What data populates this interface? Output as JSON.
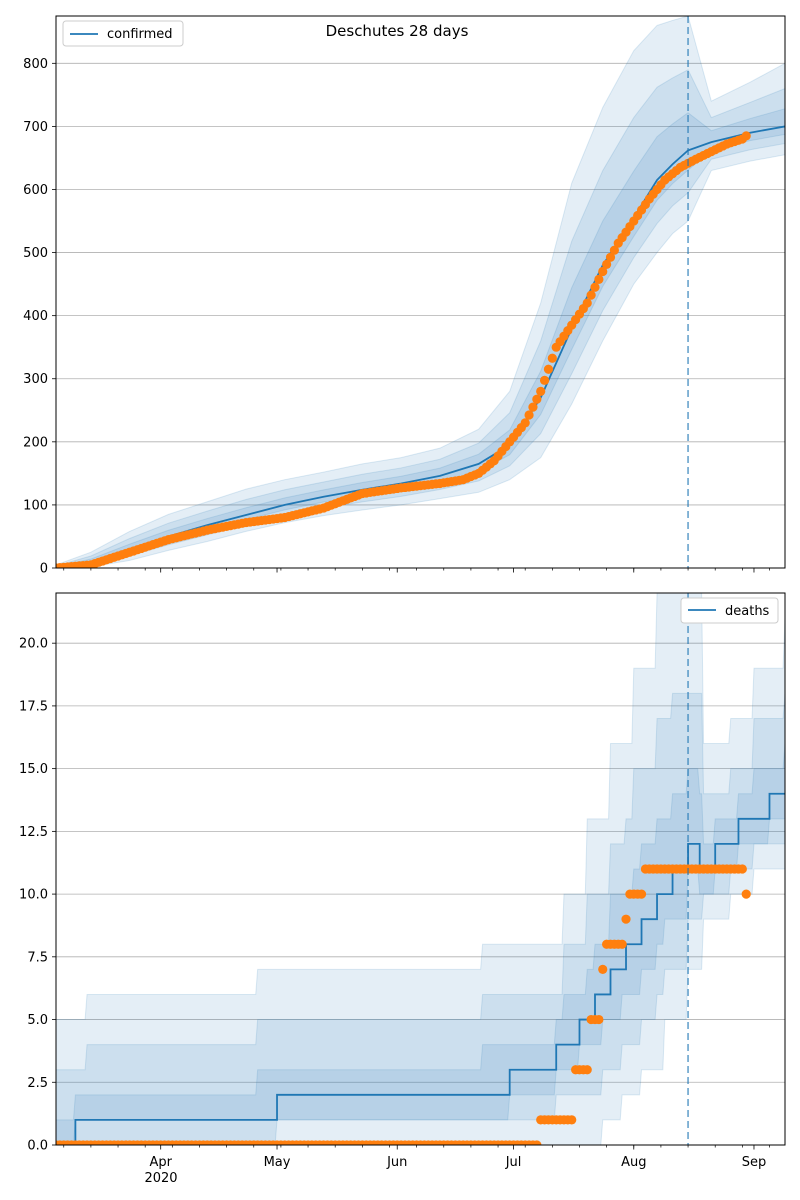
{
  "figure": {
    "title": "Deschutes 28 days"
  },
  "colors": {
    "model": "#1f77b4",
    "observed": "#ff7f0e",
    "band": "#1f77b4",
    "grid": "#b0b0b0",
    "axis": "#000000"
  },
  "x_axis": {
    "month_ticks": [
      {
        "label": "Apr",
        "day": 18
      },
      {
        "label": "May",
        "day": 48
      },
      {
        "label": "Jun",
        "day": 79
      },
      {
        "label": "Jul",
        "day": 109
      },
      {
        "label": "Aug",
        "day": 140
      },
      {
        "label": "Sep",
        "day": 171
      }
    ],
    "year_label": "2020",
    "xlim": [
      -9,
      179
    ],
    "forecast_start_day": 154
  },
  "chart_data": [
    {
      "type": "line",
      "legend": "confirmed",
      "legend_position": "upper-left",
      "ylim": [
        0,
        875
      ],
      "yticks": [
        "0",
        "100",
        "200",
        "300",
        "400",
        "500",
        "600",
        "700",
        "800"
      ],
      "grid": "y",
      "x_unit": "days since Mar 14 2020",
      "model_x": [
        -9,
        0,
        10,
        20,
        30,
        40,
        50,
        60,
        70,
        80,
        90,
        100,
        108,
        116,
        124,
        132,
        140,
        146,
        150,
        154,
        160,
        170,
        179
      ],
      "model_y": [
        1,
        10,
        30,
        50,
        68,
        84,
        100,
        113,
        124,
        134,
        146,
        165,
        195,
        270,
        380,
        480,
        555,
        615,
        640,
        662,
        675,
        690,
        700
      ],
      "band_upper_95": [
        5,
        25,
        58,
        85,
        105,
        125,
        140,
        152,
        165,
        175,
        190,
        220,
        280,
        420,
        610,
        730,
        820,
        860,
        868,
        875,
        740,
        770,
        800
      ],
      "band_lower_95": [
        0,
        2,
        12,
        28,
        42,
        58,
        72,
        83,
        92,
        100,
        110,
        120,
        140,
        175,
        260,
        360,
        450,
        500,
        530,
        550,
        630,
        645,
        655
      ],
      "observed_x": [
        -9,
        0,
        10,
        20,
        30,
        40,
        50,
        60,
        70,
        80,
        90,
        96,
        100,
        104,
        108,
        112,
        116,
        120,
        124,
        128,
        132,
        136,
        140,
        144,
        148,
        152,
        156,
        160,
        164,
        168,
        169
      ],
      "observed_y": [
        0,
        5,
        25,
        45,
        60,
        72,
        80,
        95,
        118,
        127,
        134,
        140,
        150,
        170,
        200,
        230,
        280,
        350,
        385,
        420,
        470,
        515,
        550,
        585,
        615,
        635,
        648,
        660,
        672,
        680,
        685
      ]
    },
    {
      "type": "line",
      "legend": "deaths",
      "legend_position": "upper-right",
      "ylim": [
        0,
        22
      ],
      "yticks": [
        "0.0",
        "2.5",
        "5.0",
        "7.5",
        "10.0",
        "12.5",
        "15.0",
        "17.5",
        "20.0"
      ],
      "grid": "y",
      "x_unit": "days since Mar 14 2020",
      "model_steps": [
        {
          "x": -9,
          "y": 0
        },
        {
          "x": -4,
          "y": 1
        },
        {
          "x": 48,
          "y": 2
        },
        {
          "x": 108,
          "y": 3
        },
        {
          "x": 120,
          "y": 4
        },
        {
          "x": 126,
          "y": 5
        },
        {
          "x": 130,
          "y": 6
        },
        {
          "x": 134,
          "y": 7
        },
        {
          "x": 138,
          "y": 8
        },
        {
          "x": 142,
          "y": 9
        },
        {
          "x": 146,
          "y": 10
        },
        {
          "x": 150,
          "y": 11
        },
        {
          "x": 154,
          "y": 12
        },
        {
          "x": 157,
          "y": 11
        },
        {
          "x": 161,
          "y": 12
        },
        {
          "x": 167,
          "y": 13
        },
        {
          "x": 175,
          "y": 14
        },
        {
          "x": 179,
          "y": 14
        }
      ],
      "band_upper_95": [
        {
          "x": -9,
          "y": 5
        },
        {
          "x": -1,
          "y": 6
        },
        {
          "x": 32,
          "y": 6
        },
        {
          "x": 43,
          "y": 7
        },
        {
          "x": 92,
          "y": 7
        },
        {
          "x": 101,
          "y": 8
        },
        {
          "x": 116,
          "y": 8
        },
        {
          "x": 122,
          "y": 10
        },
        {
          "x": 128,
          "y": 13
        },
        {
          "x": 134,
          "y": 16
        },
        {
          "x": 140,
          "y": 19
        },
        {
          "x": 146,
          "y": 22
        },
        {
          "x": 154,
          "y": 22
        },
        {
          "x": 158,
          "y": 16
        },
        {
          "x": 165,
          "y": 17
        },
        {
          "x": 171,
          "y": 19
        },
        {
          "x": 179,
          "y": 21
        }
      ],
      "band_lower_95": [
        {
          "x": -9,
          "y": 0
        },
        {
          "x": 126,
          "y": 0
        },
        {
          "x": 132,
          "y": 1
        },
        {
          "x": 137,
          "y": 2
        },
        {
          "x": 142,
          "y": 3
        },
        {
          "x": 148,
          "y": 5
        },
        {
          "x": 154,
          "y": 7
        },
        {
          "x": 158,
          "y": 9
        },
        {
          "x": 165,
          "y": 10
        },
        {
          "x": 171,
          "y": 11
        },
        {
          "x": 179,
          "y": 11
        }
      ],
      "observed_points": [
        {
          "x": -9,
          "y": 0
        },
        {
          "x": 118,
          "y": 1
        },
        {
          "x": 127,
          "y": 3
        },
        {
          "x": 130,
          "y": 5
        },
        {
          "x": 132,
          "y": 7
        },
        {
          "x": 133,
          "y": 8
        },
        {
          "x": 138,
          "y": 9
        },
        {
          "x": 139,
          "y": 10
        },
        {
          "x": 143,
          "y": 11
        },
        {
          "x": 169,
          "y": 10
        }
      ],
      "observed_runs": [
        {
          "from": -9,
          "to": 115,
          "y": 0
        },
        {
          "from": 116,
          "to": 124,
          "y": 1
        },
        {
          "from": 125,
          "to": 128,
          "y": 3
        },
        {
          "from": 129,
          "to": 131,
          "y": 5
        },
        {
          "from": 132,
          "to": 132,
          "y": 7
        },
        {
          "from": 133,
          "to": 137,
          "y": 8
        },
        {
          "from": 138,
          "to": 138,
          "y": 9
        },
        {
          "from": 139,
          "to": 142,
          "y": 10
        },
        {
          "from": 143,
          "to": 168,
          "y": 11
        },
        {
          "from": 169,
          "to": 169,
          "y": 10
        }
      ]
    }
  ]
}
